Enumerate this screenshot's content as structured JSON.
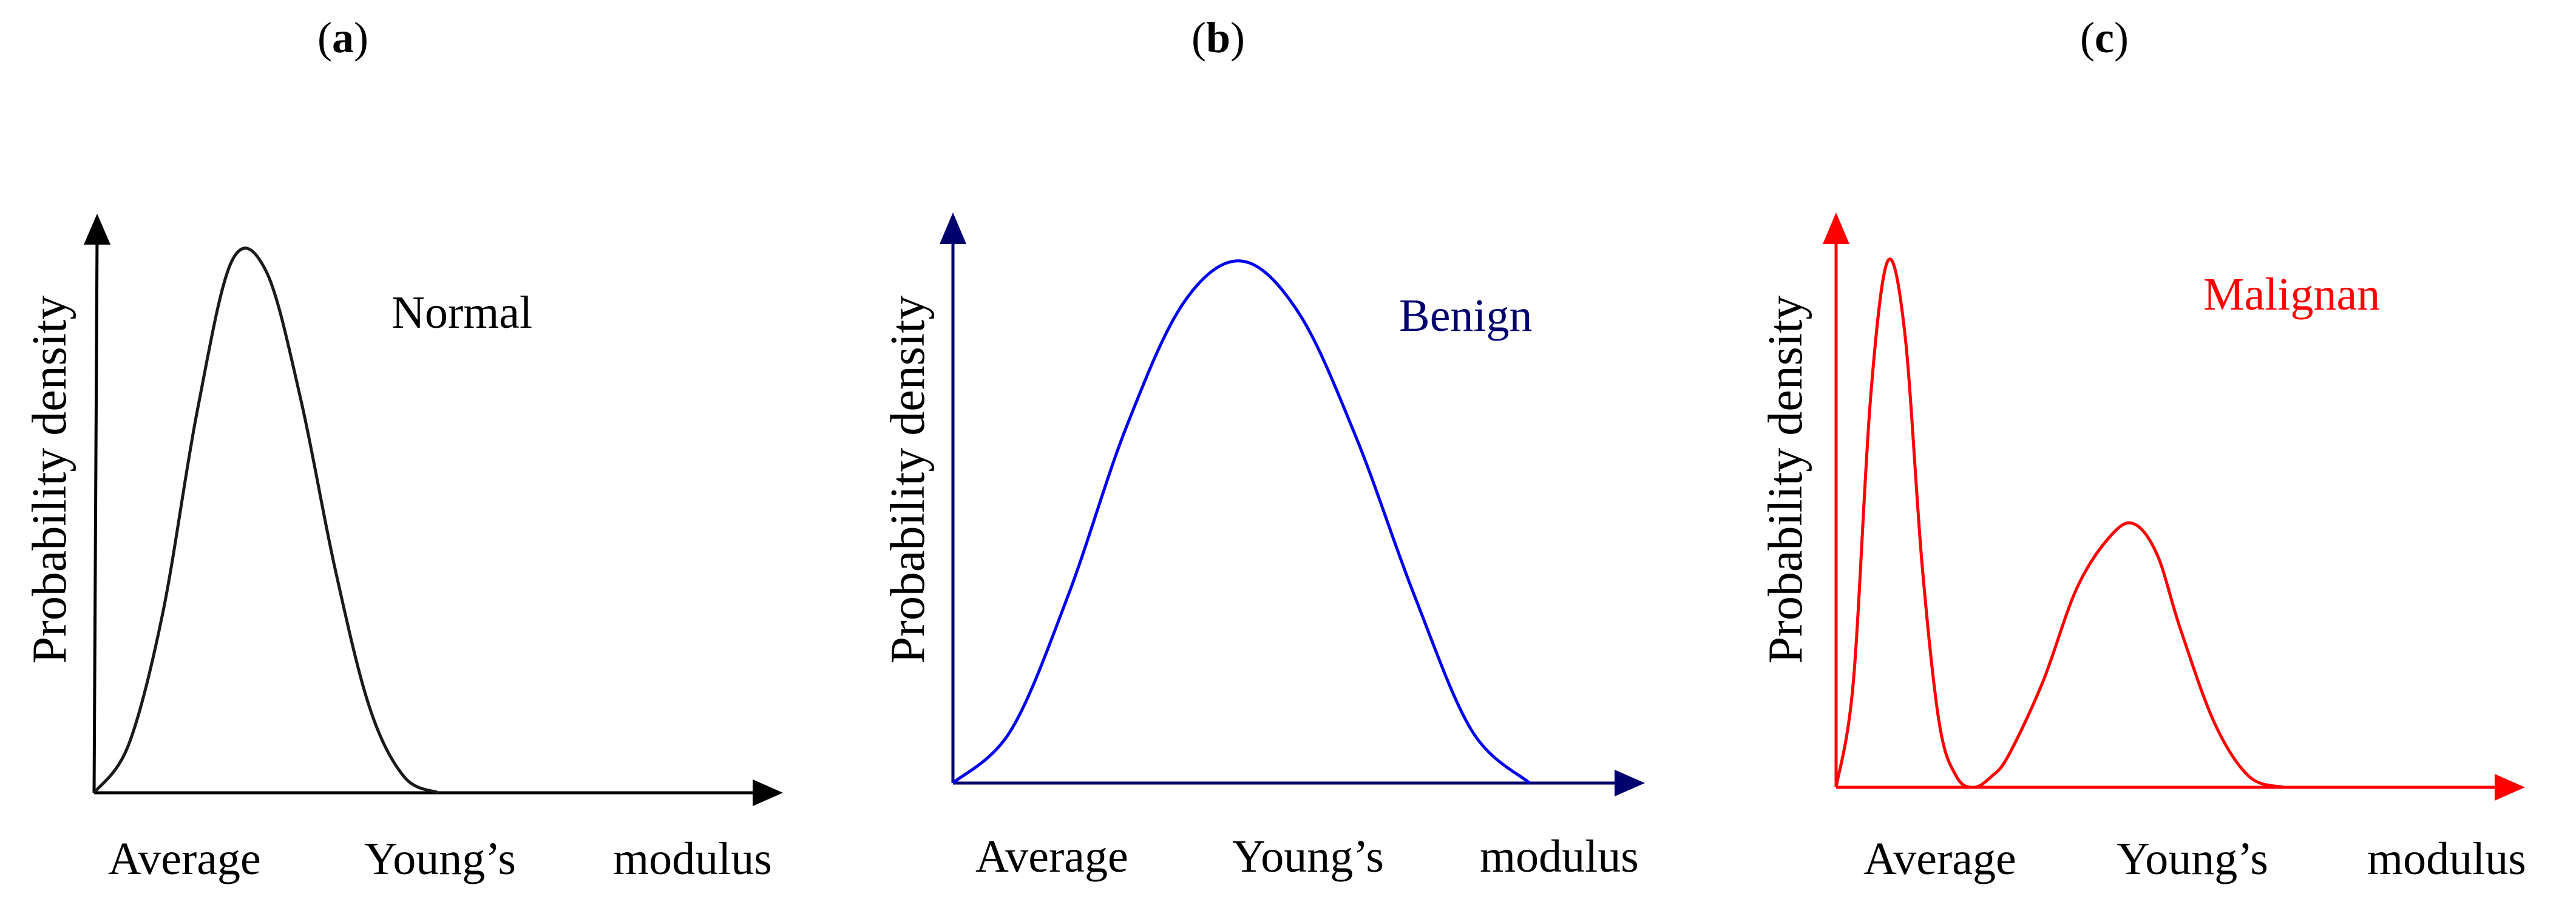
{
  "colors": {
    "normal": "#1a1a1a",
    "benign": "#0000ee",
    "benign_axis": "#00006e",
    "malignant": "#ff0000"
  },
  "chart_data": [
    {
      "type": "line",
      "panel_label": "a",
      "ylabel": "Probability density",
      "xlabel_words": [
        "Average",
        "Young’s",
        "modulus"
      ],
      "series": [
        {
          "name": "Normal",
          "shape": "single-peak",
          "x": [
            0.0,
            0.05,
            0.1,
            0.15,
            0.2,
            0.25,
            0.3,
            0.35,
            0.4,
            0.45,
            0.5
          ],
          "y": [
            0.0,
            0.09,
            0.34,
            0.72,
            1.0,
            0.98,
            0.74,
            0.42,
            0.16,
            0.03,
            0.0
          ]
        }
      ],
      "xlim": [
        0,
        1
      ],
      "ylim": [
        0,
        1.12
      ],
      "grid": false
    },
    {
      "type": "line",
      "panel_label": "b",
      "ylabel": "Probability density",
      "xlabel_words": [
        "Average",
        "Young’s",
        "modulus"
      ],
      "series": [
        {
          "name": "Benign",
          "shape": "single-peak",
          "x": [
            0.0,
            0.1,
            0.2,
            0.3,
            0.4,
            0.5,
            0.6,
            0.7,
            0.8,
            0.9,
            1.0
          ],
          "y": [
            0.0,
            0.1,
            0.36,
            0.68,
            0.92,
            1.0,
            0.9,
            0.66,
            0.36,
            0.1,
            0.0
          ]
        }
      ],
      "xlim": [
        0,
        1.2
      ],
      "ylim": [
        0,
        1.12
      ],
      "grid": false
    },
    {
      "type": "line",
      "panel_label": "c",
      "ylabel": "Probability density",
      "xlabel_words": [
        "Average",
        "Young’s",
        "modulus"
      ],
      "series": [
        {
          "name": "Malignan",
          "shape": "bimodal",
          "x": [
            0.0,
            0.03,
            0.06,
            0.09,
            0.12,
            0.15,
            0.18,
            0.21,
            0.24,
            0.27,
            0.3,
            0.36,
            0.42,
            0.48,
            0.52,
            0.56,
            0.6,
            0.66,
            0.72,
            0.78
          ],
          "y": [
            0.0,
            0.2,
            0.74,
            1.0,
            0.86,
            0.42,
            0.12,
            0.02,
            0.0,
            0.02,
            0.06,
            0.2,
            0.38,
            0.48,
            0.5,
            0.44,
            0.3,
            0.12,
            0.02,
            0.0
          ]
        }
      ],
      "xlim": [
        0,
        1.2
      ],
      "ylim": [
        0,
        1.12
      ],
      "grid": false
    }
  ]
}
